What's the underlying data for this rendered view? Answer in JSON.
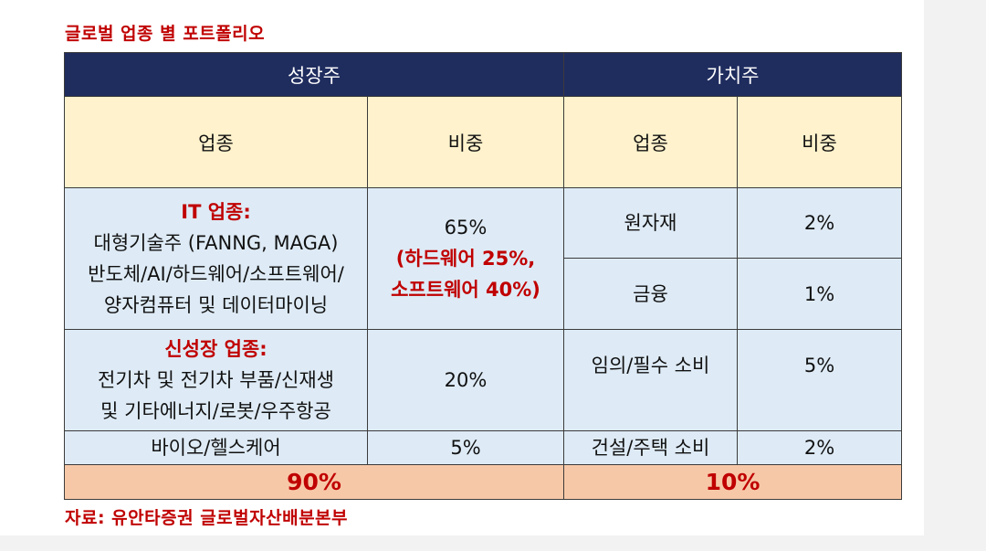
{
  "title": "글로벌 업종 별 포트폴리오",
  "source": "자료: 유안타증권 글로벌자산배분본부",
  "growth": {
    "header": "성장주",
    "col_sector": "업종",
    "col_weight": "비중",
    "rows": [
      {
        "sector_title": "IT 업종:",
        "sector_lines": [
          "대형기술주 (FANNG, MAGA)",
          "반도체/AI/하드웨어/소프트웨어/",
          "양자컴퓨터 및 데이터마이닝"
        ],
        "weight_main": "65%",
        "weight_detail": [
          "(하드웨어 25%,",
          "소프트웨어 40%)"
        ]
      },
      {
        "sector_title": "신성장 업종:",
        "sector_lines": [
          "전기차 및 전기차 부품/신재생",
          "및 기타에너지/로봇/우주항공"
        ],
        "weight_main": "20%"
      },
      {
        "sector_lines": [
          "바이오/헬스케어"
        ],
        "weight_main": "5%"
      }
    ],
    "total": "90%"
  },
  "value": {
    "header": "가치주",
    "col_sector": "업종",
    "col_weight": "비중",
    "rows": [
      {
        "sector": "원자재",
        "weight": "2%"
      },
      {
        "sector": "금융",
        "weight": "1%"
      },
      {
        "sector": "임의/필수 소비",
        "weight": "5%"
      },
      {
        "sector": "건설/주택 소비",
        "weight": "2%"
      }
    ],
    "total": "10%"
  },
  "colors": {
    "header_bg": "#1f2c5e",
    "subheader_bg": "#fff2cc",
    "body_bg": "#deebf6",
    "total_bg": "#f7c8a8",
    "accent_red": "#c00000"
  }
}
